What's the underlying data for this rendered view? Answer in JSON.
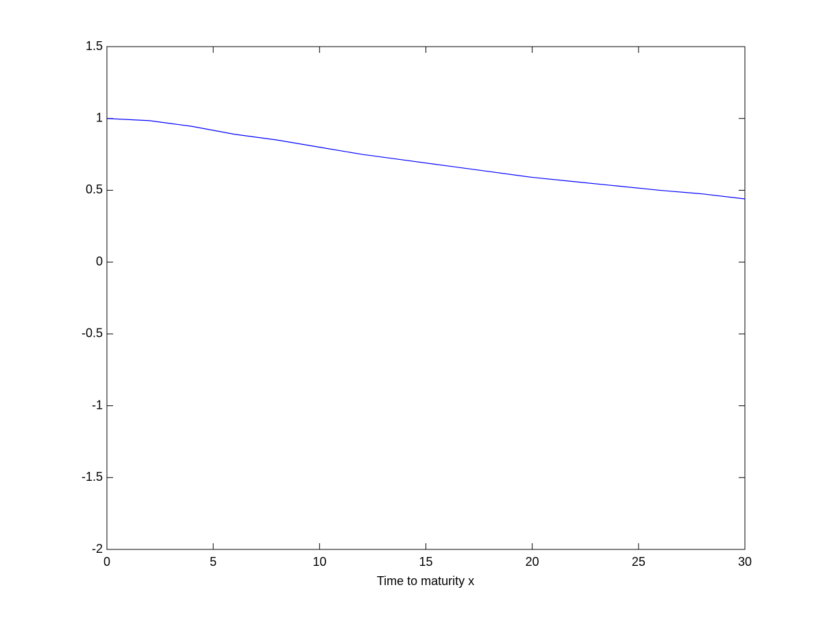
{
  "chart_data": {
    "type": "line",
    "xlabel": "Time to maturity x",
    "x": [
      0,
      2,
      4,
      6,
      8,
      10,
      12,
      14,
      16,
      18,
      20,
      22,
      24,
      26,
      28,
      30
    ],
    "series": [
      {
        "color": "#0000ff",
        "values": [
          1.0,
          0.985,
          0.945,
          0.89,
          0.85,
          0.8,
          0.75,
          0.71,
          0.67,
          0.63,
          0.59,
          0.56,
          0.53,
          0.5,
          0.475,
          0.44
        ]
      }
    ],
    "xlim": [
      0,
      30
    ],
    "xticks": [
      0,
      5,
      10,
      15,
      20,
      25,
      30
    ],
    "ylim": [
      -2,
      1.5
    ],
    "yticks": [
      -2,
      -1.5,
      -1,
      -0.5,
      0,
      0.5,
      1,
      1.5
    ],
    "grid": false
  }
}
